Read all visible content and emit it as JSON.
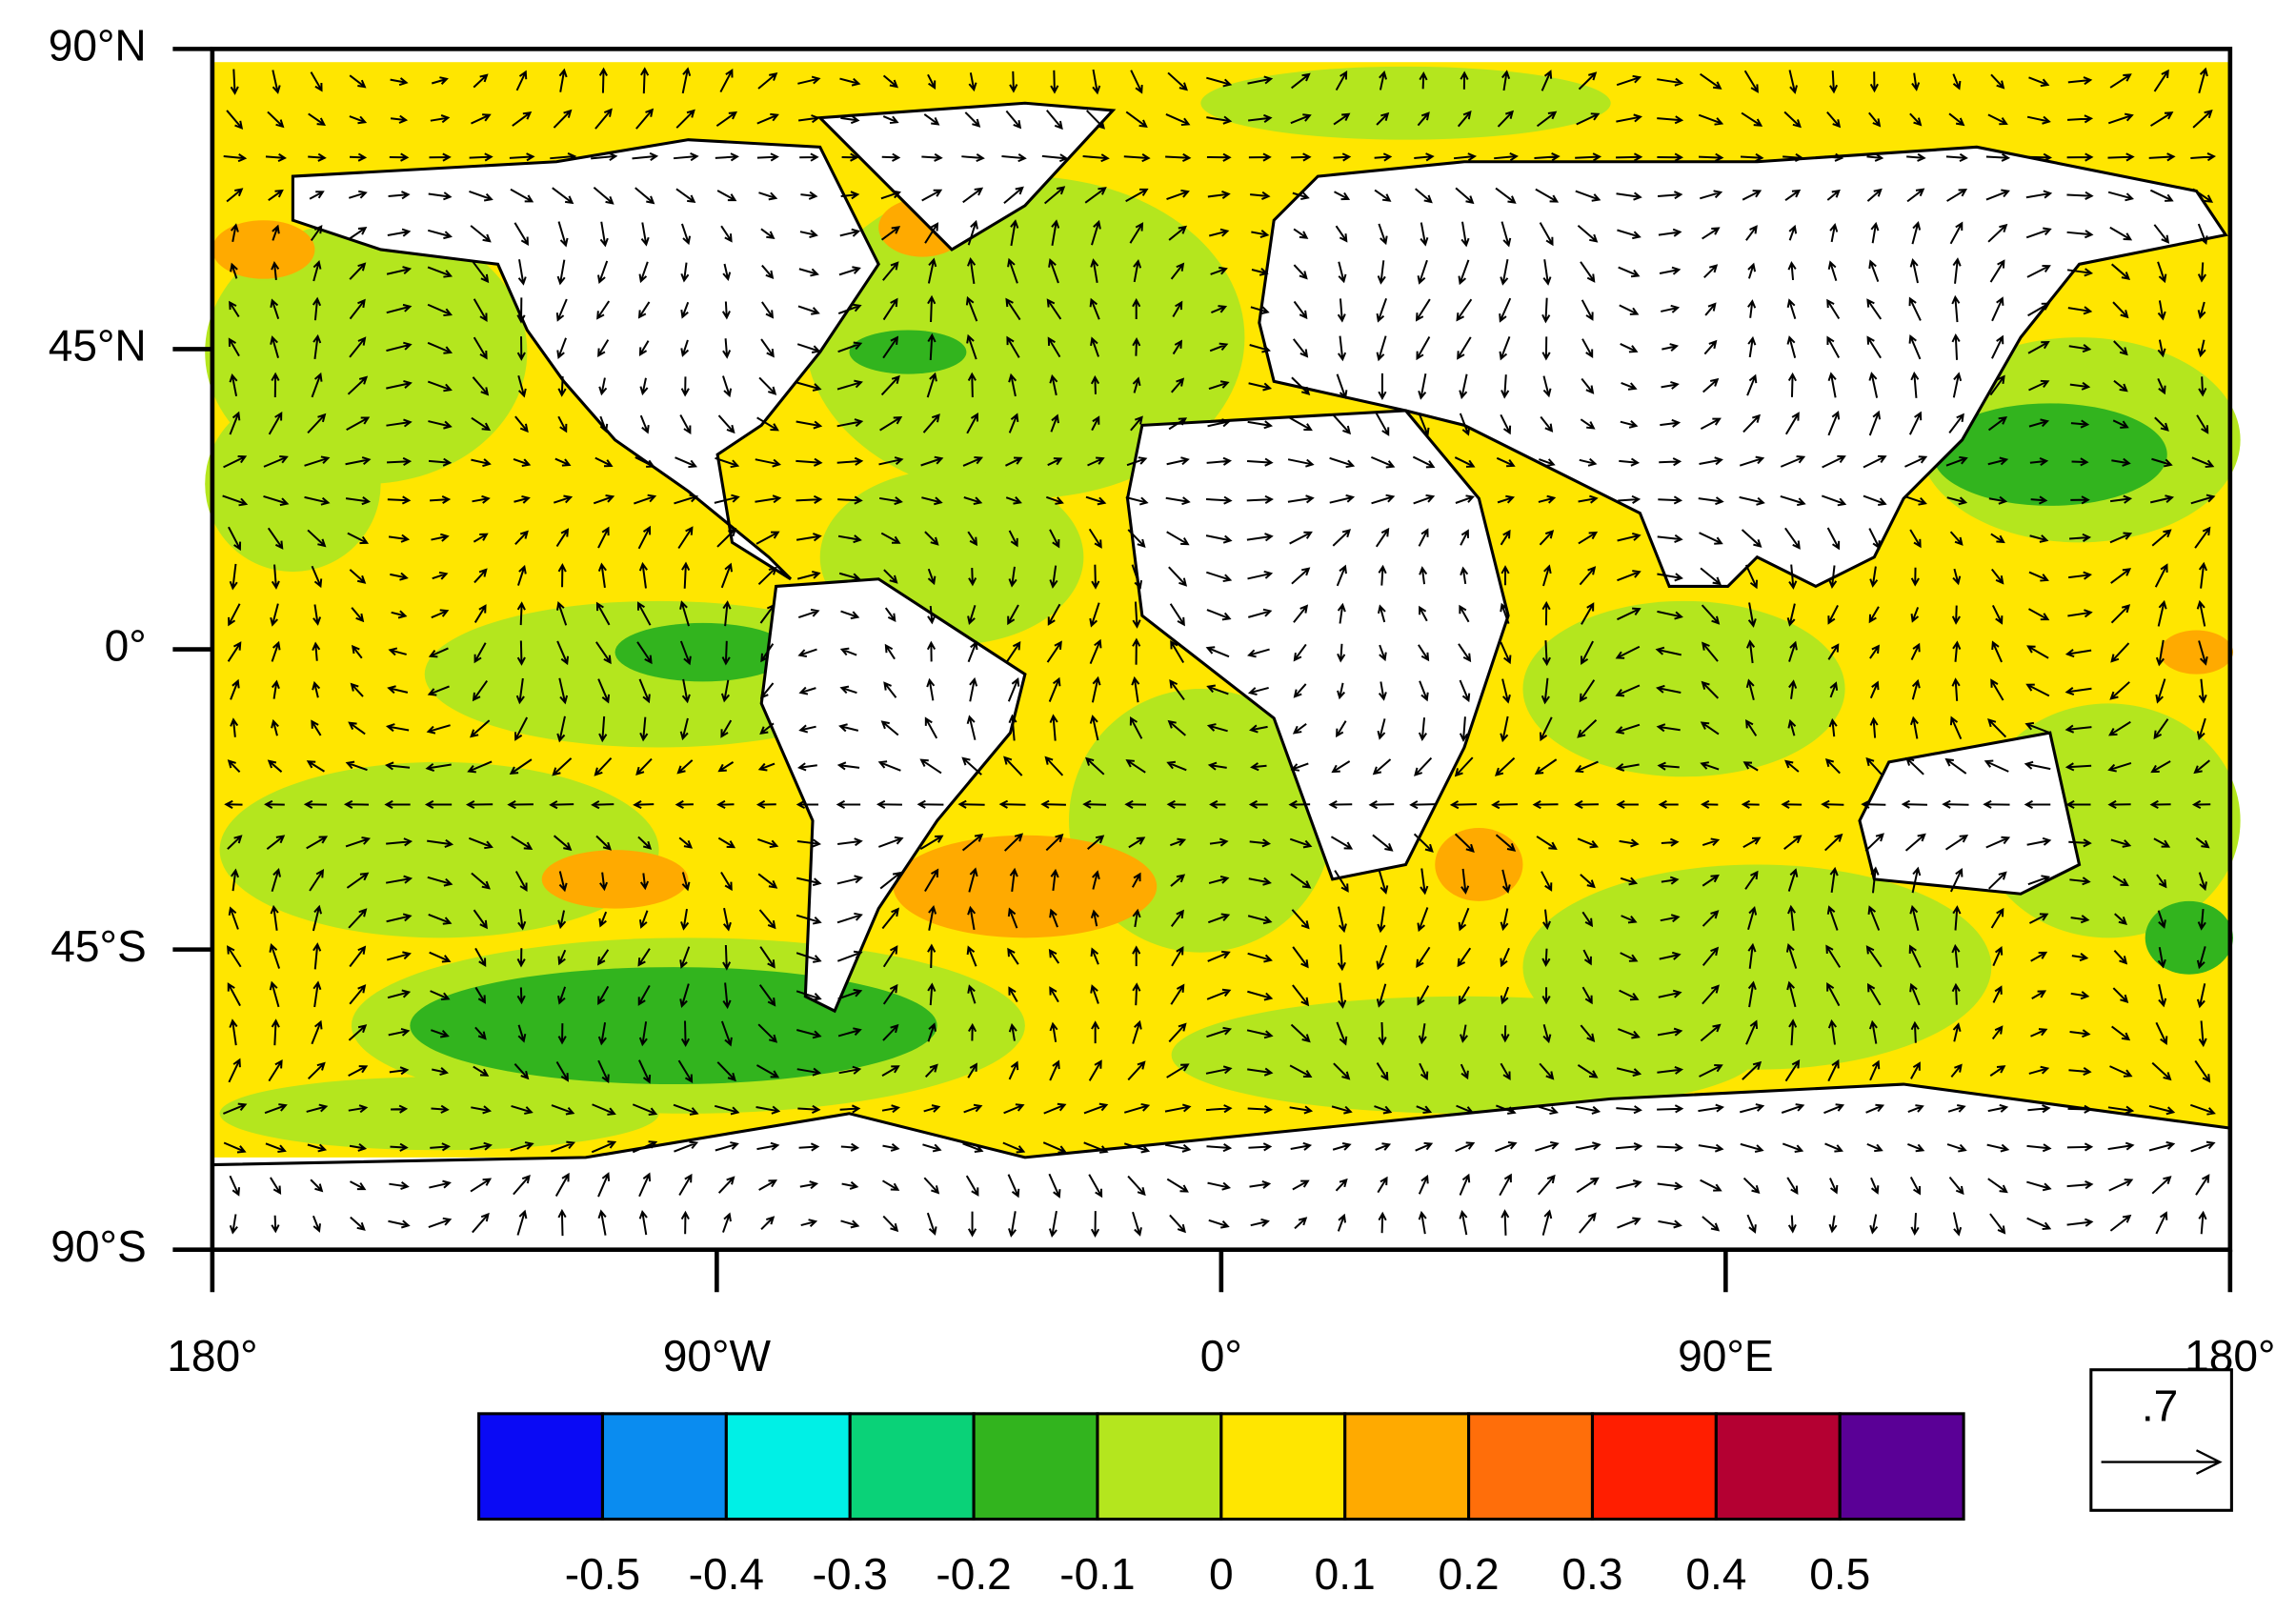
{
  "map": {
    "xlim": [
      -180,
      180
    ],
    "ylim": [
      -90,
      90
    ],
    "lat_ticks": [
      {
        "value": 90,
        "label": "90°N"
      },
      {
        "value": 45,
        "label": "45°N"
      },
      {
        "value": 0,
        "label": "0°"
      },
      {
        "value": -45,
        "label": "45°S"
      },
      {
        "value": -90,
        "label": "90°S"
      }
    ],
    "lon_ticks": [
      {
        "value": -180,
        "label": "180°"
      },
      {
        "value": -90,
        "label": "90°W"
      },
      {
        "value": 0,
        "label": "0°"
      },
      {
        "value": 90,
        "label": "90°E"
      },
      {
        "value": 180,
        "label": "180°"
      }
    ]
  },
  "colorbar": {
    "levels": [
      -0.5,
      -0.4,
      -0.3,
      -0.2,
      -0.1,
      0,
      0.1,
      0.2,
      0.3,
      0.4,
      0.5
    ],
    "colors": [
      "#0a0af5",
      "#0a8cf0",
      "#00f0e6",
      "#0ad278",
      "#32b41e",
      "#b4e61e",
      "#ffe600",
      "#ffaa00",
      "#ff6e0a",
      "#ff1e00",
      "#b40032",
      "#5a0096"
    ]
  },
  "reference_vector": {
    "value": 0.7,
    "label": ".7"
  }
}
